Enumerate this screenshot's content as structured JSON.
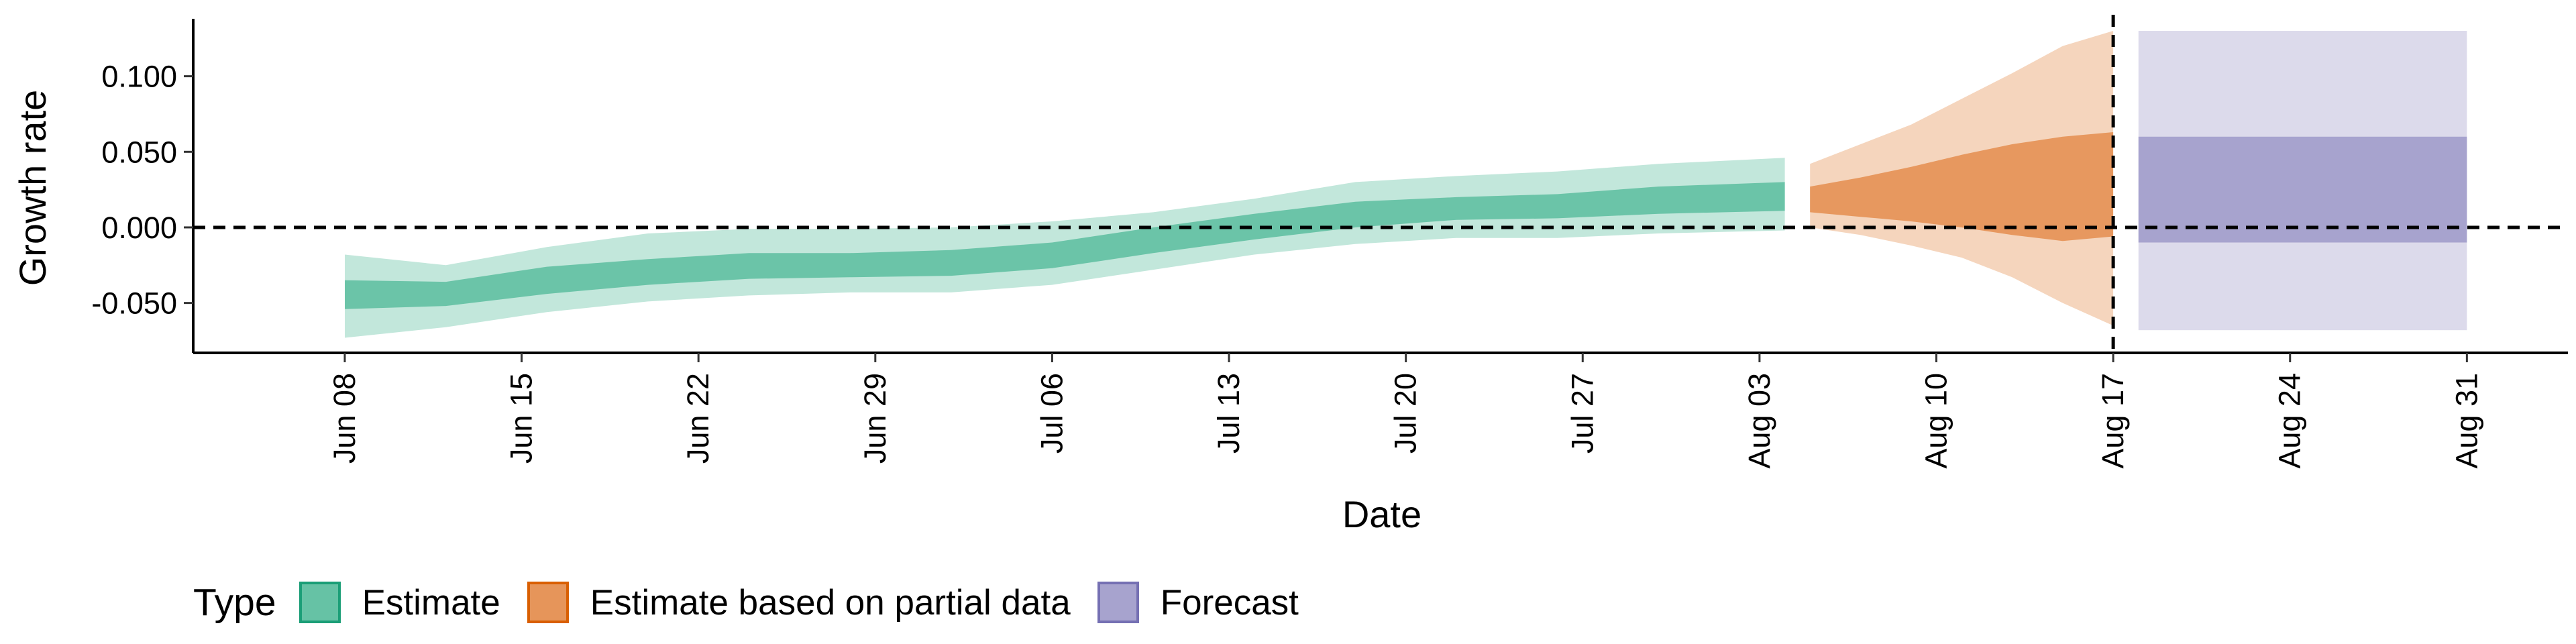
{
  "chart_data": {
    "type": "area",
    "xlabel": "Date",
    "ylabel": "Growth rate",
    "ylim": [
      -0.083,
      0.138
    ],
    "yticks": [
      -0.05,
      0.0,
      0.05,
      0.1
    ],
    "ytick_labels": [
      "-0.050",
      "0.000",
      "0.050",
      "0.100"
    ],
    "xlim": [
      "2021-06-02",
      "2021-09-04"
    ],
    "xticks": [
      "2021-06-08",
      "2021-06-15",
      "2021-06-22",
      "2021-06-29",
      "2021-07-06",
      "2021-07-13",
      "2021-07-20",
      "2021-07-27",
      "2021-08-03",
      "2021-08-10",
      "2021-08-17",
      "2021-08-24",
      "2021-08-31"
    ],
    "xtick_labels": [
      "Jun 08",
      "Jun 15",
      "Jun 22",
      "Jun 29",
      "Jul 06",
      "Jul 13",
      "Jul 20",
      "Jul 27",
      "Aug 03",
      "Aug 10",
      "Aug 17",
      "Aug 24",
      "Aug 31"
    ],
    "hline": 0.0,
    "vline": "2021-08-17",
    "grid": false,
    "legend_position": "bottom-left",
    "legend_title": "Type",
    "series": [
      {
        "name": "Estimate",
        "color": "#66c2a5",
        "border": "#1b9e77",
        "x": [
          "2021-06-08",
          "2021-06-12",
          "2021-06-16",
          "2021-06-20",
          "2021-06-24",
          "2021-06-28",
          "2021-07-02",
          "2021-07-06",
          "2021-07-10",
          "2021-07-14",
          "2021-07-18",
          "2021-07-22",
          "2021-07-26",
          "2021-07-30",
          "2021-08-04"
        ],
        "lower_90": [
          -0.073,
          -0.066,
          -0.056,
          -0.049,
          -0.045,
          -0.043,
          -0.043,
          -0.038,
          -0.028,
          -0.018,
          -0.011,
          -0.007,
          -0.007,
          -0.004,
          -0.002
        ],
        "lower_50": [
          -0.054,
          -0.052,
          -0.044,
          -0.038,
          -0.034,
          -0.033,
          -0.032,
          -0.027,
          -0.017,
          -0.008,
          0.0,
          0.005,
          0.006,
          0.009,
          0.011
        ],
        "upper_50": [
          -0.035,
          -0.036,
          -0.026,
          -0.021,
          -0.017,
          -0.017,
          -0.015,
          -0.01,
          0.0,
          0.009,
          0.017,
          0.02,
          0.022,
          0.027,
          0.03
        ],
        "upper_90": [
          -0.018,
          -0.025,
          -0.013,
          -0.004,
          -0.001,
          -0.001,
          0.0,
          0.004,
          0.01,
          0.019,
          0.03,
          0.034,
          0.037,
          0.042,
          0.046
        ]
      },
      {
        "name": "Estimate based on partial data",
        "color": "#e6955a",
        "border": "#d95f02",
        "x": [
          "2021-08-05",
          "2021-08-07",
          "2021-08-09",
          "2021-08-11",
          "2021-08-13",
          "2021-08-15",
          "2021-08-17"
        ],
        "lower_90": [
          0.0,
          -0.005,
          -0.012,
          -0.02,
          -0.033,
          -0.05,
          -0.065
        ],
        "lower_50": [
          0.01,
          0.007,
          0.004,
          0.0,
          -0.005,
          -0.009,
          -0.006
        ],
        "upper_50": [
          0.027,
          0.033,
          0.04,
          0.048,
          0.055,
          0.06,
          0.063
        ],
        "upper_90": [
          0.042,
          0.055,
          0.068,
          0.085,
          0.102,
          0.12,
          0.13
        ]
      },
      {
        "name": "Forecast",
        "color": "#a7a3ce",
        "border": "#7570b3",
        "x": [
          "2021-08-18",
          "2021-08-31"
        ],
        "lower_90": [
          -0.068,
          -0.068
        ],
        "lower_50": [
          -0.01,
          -0.01
        ],
        "upper_50": [
          0.06,
          0.06
        ],
        "upper_90": [
          0.13,
          0.13
        ]
      }
    ]
  }
}
